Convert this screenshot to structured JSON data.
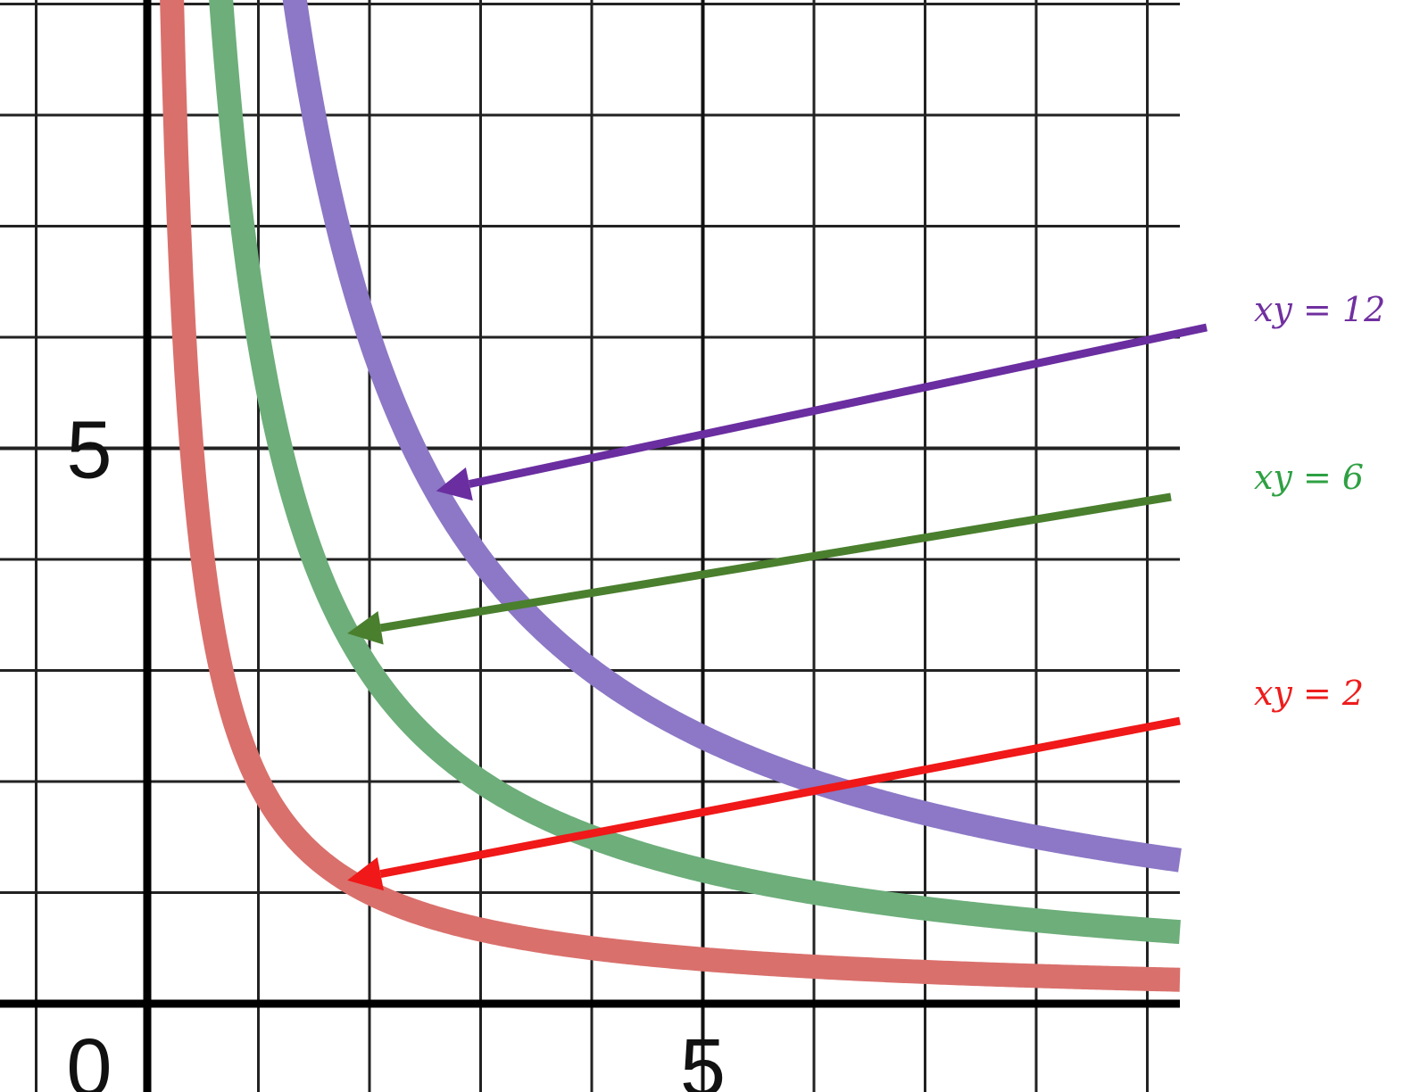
{
  "chart_data": {
    "type": "line",
    "title": "",
    "xlabel": "",
    "ylabel": "",
    "xlim": [
      -1.3,
      9.3
    ],
    "ylim": [
      -0.8,
      9.9
    ],
    "grid": true,
    "grid_step": 1,
    "tick_labels": {
      "origin": "0",
      "x": [
        {
          "value": 5,
          "label": "5"
        }
      ],
      "y": [
        {
          "value": 5,
          "label": "5"
        }
      ]
    },
    "series": [
      {
        "name": "xy = 2",
        "k": 2,
        "line_color": "#d9706c",
        "label_color": "#ee1c1c",
        "arrow_color": "#f01818",
        "pointer_x": 1.8
      },
      {
        "name": "xy = 6",
        "k": 6,
        "line_color": "#6dae7a",
        "label_color": "#2ea043",
        "arrow_color": "#4a7f2e",
        "pointer_x": 1.8
      },
      {
        "name": "xy = 12",
        "k": 12,
        "line_color": "#8c78c6",
        "label_color": "#7030a0",
        "arrow_color": "#6a2ea0",
        "pointer_x": 2.6
      }
    ],
    "legend": "right"
  }
}
